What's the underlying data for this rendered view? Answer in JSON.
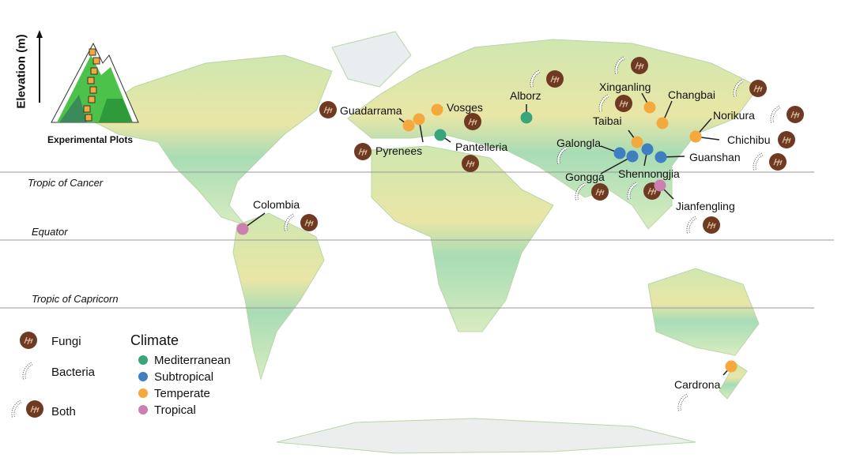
{
  "inset": {
    "axis_label": "Elevation (m)",
    "caption": "Experimental Plots"
  },
  "lines": {
    "cancer": "Tropic of Cancer",
    "equator": "Equator",
    "capricorn": "Tropic of Capricorn"
  },
  "legend": {
    "microbes": [
      {
        "label": "Fungi",
        "icon": "fungi-icon"
      },
      {
        "label": "Bacteria",
        "icon": "bacteria-icon"
      },
      {
        "label": "Both",
        "icon": "both-icon"
      }
    ],
    "climate_title": "Climate",
    "climate": [
      {
        "label": "Mediterranean",
        "color": "#3aa57a"
      },
      {
        "label": "Subtropical",
        "color": "#3f7fc0"
      },
      {
        "label": "Temperate",
        "color": "#f5a93c"
      },
      {
        "label": "Tropical",
        "color": "#cc80b2"
      }
    ]
  },
  "sites": [
    {
      "name": "Guadarrama",
      "climate": "Temperate",
      "microbes": "Fungi"
    },
    {
      "name": "Pyrenees",
      "climate": "Temperate",
      "microbes": "Fungi"
    },
    {
      "name": "Vosges",
      "climate": "Temperate",
      "microbes": "Fungi"
    },
    {
      "name": "Pantelleria",
      "climate": "Mediterranean",
      "microbes": "Fungi"
    },
    {
      "name": "Alborz",
      "climate": "Mediterranean",
      "microbes": "Both"
    },
    {
      "name": "Xinganling",
      "climate": "Temperate",
      "microbes": "Both"
    },
    {
      "name": "Changbai",
      "climate": "Temperate",
      "microbes": "Both"
    },
    {
      "name": "Norikura",
      "climate": "Temperate",
      "microbes": "Both"
    },
    {
      "name": "Chichibu",
      "climate": "Temperate",
      "microbes": "Fungi"
    },
    {
      "name": "Taibai",
      "climate": "Temperate",
      "microbes": "Both"
    },
    {
      "name": "Galongla",
      "climate": "Subtropical",
      "microbes": "Bacteria"
    },
    {
      "name": "Gongga",
      "climate": "Subtropical",
      "microbes": "Both"
    },
    {
      "name": "Shennongjia",
      "climate": "Subtropical",
      "microbes": "Both"
    },
    {
      "name": "Guanshan",
      "climate": "Subtropical",
      "microbes": "Both"
    },
    {
      "name": "Jianfengling",
      "climate": "Tropical",
      "microbes": "Both"
    },
    {
      "name": "Colombia",
      "climate": "Tropical",
      "microbes": "Both"
    },
    {
      "name": "Cardrona",
      "climate": "Temperate",
      "microbes": "Bacteria"
    }
  ]
}
